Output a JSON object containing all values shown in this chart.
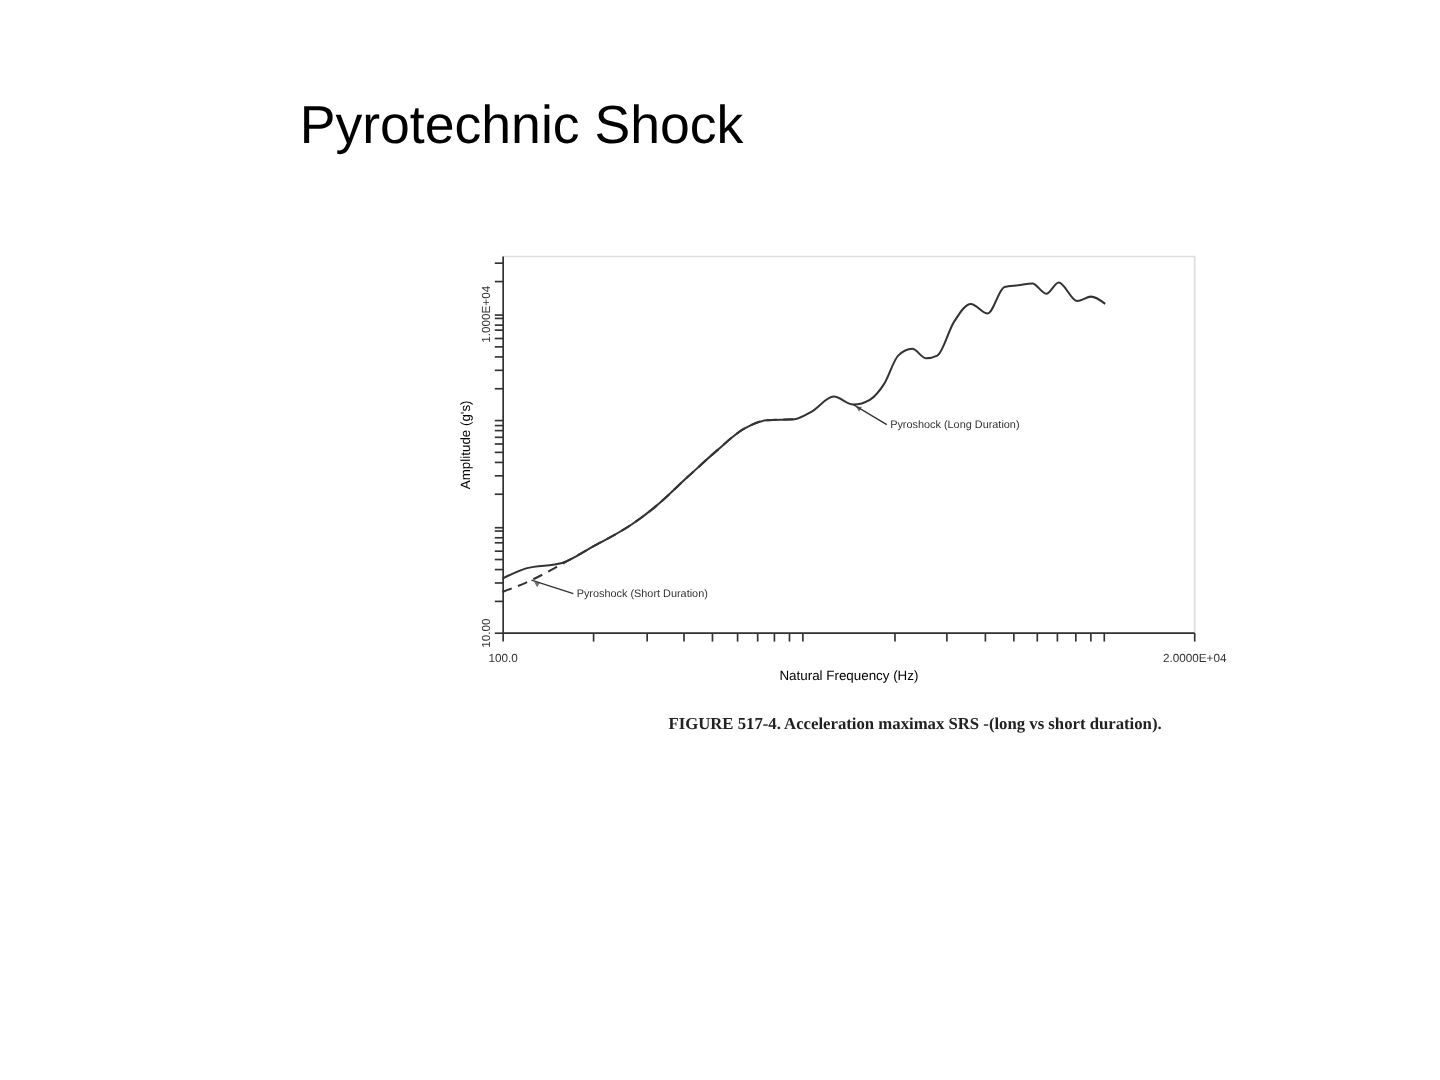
{
  "chart_data": {
    "type": "line",
    "title": "Pyrotechnic Shock",
    "xlabel": "Natural Frequency (Hz)",
    "ylabel": "Amplitude (g's)",
    "log": "xy",
    "grid": false,
    "xlim": [
      100,
      20000
    ],
    "ylim": [
      10,
      35000
    ],
    "xticks": [
      {
        "value": 100,
        "label": "100.0"
      },
      {
        "value": 200,
        "label": null
      },
      {
        "value": 300,
        "label": null
      },
      {
        "value": 400,
        "label": null
      },
      {
        "value": 500,
        "label": null
      },
      {
        "value": 600,
        "label": null
      },
      {
        "value": 700,
        "label": null
      },
      {
        "value": 800,
        "label": null
      },
      {
        "value": 900,
        "label": null
      },
      {
        "value": 1000,
        "label": null
      },
      {
        "value": 2000,
        "label": null
      },
      {
        "value": 3000,
        "label": null
      },
      {
        "value": 4000,
        "label": null
      },
      {
        "value": 5000,
        "label": null
      },
      {
        "value": 6000,
        "label": null
      },
      {
        "value": 7000,
        "label": null
      },
      {
        "value": 8000,
        "label": null
      },
      {
        "value": 9000,
        "label": null
      },
      {
        "value": 10000,
        "label": null
      },
      {
        "value": 20000,
        "label": "2.0000E+04"
      }
    ],
    "yticks": [
      {
        "value": 10,
        "label": "10.00"
      },
      {
        "value": 20,
        "label": null
      },
      {
        "value": 30,
        "label": null
      },
      {
        "value": 40,
        "label": null
      },
      {
        "value": 50,
        "label": null
      },
      {
        "value": 60,
        "label": null
      },
      {
        "value": 70,
        "label": null
      },
      {
        "value": 80,
        "label": null
      },
      {
        "value": 90,
        "label": null
      },
      {
        "value": 100,
        "label": null
      },
      {
        "value": 200,
        "label": null
      },
      {
        "value": 300,
        "label": null
      },
      {
        "value": 400,
        "label": null
      },
      {
        "value": 500,
        "label": null
      },
      {
        "value": 600,
        "label": null
      },
      {
        "value": 700,
        "label": null
      },
      {
        "value": 800,
        "label": null
      },
      {
        "value": 900,
        "label": null
      },
      {
        "value": 1000,
        "label": null
      },
      {
        "value": 2000,
        "label": null
      },
      {
        "value": 3000,
        "label": null
      },
      {
        "value": 4000,
        "label": null
      },
      {
        "value": 5000,
        "label": null
      },
      {
        "value": 6000,
        "label": null
      },
      {
        "value": 7000,
        "label": null
      },
      {
        "value": 8000,
        "label": null
      },
      {
        "value": 9000,
        "label": null
      },
      {
        "value": 10000,
        "label": "1.000E+04"
      },
      {
        "value": 20000,
        "label": null
      },
      {
        "value": 30000,
        "label": null
      }
    ],
    "series": [
      {
        "color": "#333333",
        "line_style": "solid",
        "x": [
          100,
          120,
          158,
          200,
          270,
          321,
          415,
          515,
          638,
          757,
          938,
          1067,
          1267,
          1472,
          1675,
          1866,
          2076,
          2312,
          2572,
          2800,
          3184,
          3622,
          4120,
          4688,
          5215,
          5800,
          6460,
          7100,
          8180,
          9100,
          10140
        ],
        "values": [
          32,
          40,
          45,
          64,
          104,
          150,
          292,
          507,
          824,
          988,
          1013,
          1189,
          1652,
          1390,
          1550,
          2188,
          4010,
          4645,
          3785,
          4010,
          8337,
          12300,
          10000,
          17750,
          18400,
          19100,
          15350,
          19600,
          13100,
          14400,
          12300
        ]
      },
      {
        "color": "#333333",
        "line_style": "dashed",
        "x": [
          100,
          125,
          158,
          200,
          270,
          321,
          415,
          515,
          638,
          757,
          938
        ],
        "values": [
          24,
          31,
          44,
          64,
          104,
          150,
          292,
          507,
          824,
          988,
          1013
        ]
      }
    ],
    "annotations": [
      {
        "text": "Pyroshock (Long Duration)",
        "x": 1472,
        "y": 1390
      },
      {
        "text": "Pyroshock (Short Duration)",
        "x": 125,
        "y": 31
      },
      "FIGURE 517-4.  Acceleration maximax SRS -(long vs short duration)."
    ]
  }
}
